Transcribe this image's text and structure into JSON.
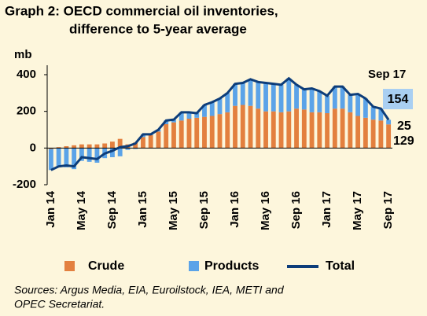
{
  "chart_data": {
    "type": "stacked-bar-line",
    "title": "Graph 2: OECD commercial oil inventories,",
    "subtitle": "difference to 5-year average",
    "y_label": "mb",
    "annotation": "Sep 17",
    "source": [
      "Sources: Argus Media, EIA, Euroilstock, IEA, METI and",
      "OPEC Secretariat."
    ],
    "categories": [
      "Jan 14",
      null,
      null,
      null,
      "May 14",
      null,
      null,
      null,
      "Sep 14",
      null,
      null,
      null,
      "Jan 15",
      null,
      null,
      null,
      "May 15",
      null,
      null,
      null,
      "Sep 15",
      null,
      null,
      null,
      "Jan 16",
      null,
      null,
      null,
      "May 16",
      null,
      null,
      null,
      "Sep 16",
      null,
      null,
      null,
      "Jan 17",
      null,
      null,
      null,
      "May 17",
      null,
      null,
      null,
      "Sep 17"
    ],
    "series": [
      {
        "name": "Crude",
        "color": "#e3803f",
        "values": [
          -5,
          5,
          10,
          15,
          20,
          20,
          20,
          25,
          35,
          50,
          20,
          30,
          60,
          70,
          90,
          130,
          140,
          150,
          160,
          165,
          170,
          175,
          185,
          195,
          230,
          235,
          230,
          215,
          200,
          200,
          195,
          200,
          215,
          210,
          195,
          195,
          190,
          215,
          215,
          195,
          175,
          165,
          155,
          150,
          129
        ]
      },
      {
        "name": "Products",
        "color": "#5ba3e8",
        "values": [
          -115,
          -105,
          -105,
          -115,
          -70,
          -75,
          -80,
          -55,
          -50,
          -45,
          -10,
          -5,
          15,
          5,
          10,
          20,
          15,
          45,
          35,
          25,
          65,
          75,
          85,
          105,
          120,
          120,
          145,
          145,
          155,
          150,
          150,
          180,
          130,
          110,
          130,
          115,
          95,
          120,
          120,
          95,
          120,
          105,
          70,
          65,
          25
        ]
      },
      {
        "name": "Total",
        "color": "#0d3d7a",
        "values": [
          -120,
          -100,
          -95,
          -100,
          -50,
          -55,
          -60,
          -30,
          -15,
          5,
          10,
          25,
          75,
          75,
          100,
          150,
          155,
          195,
          195,
          190,
          235,
          250,
          270,
          300,
          350,
          355,
          375,
          360,
          355,
          350,
          345,
          380,
          345,
          320,
          325,
          310,
          285,
          335,
          335,
          290,
          295,
          270,
          225,
          215,
          154
        ]
      }
    ],
    "ylim": [
      -200,
      400
    ],
    "yticks": [
      -200,
      0,
      200,
      400
    ]
  }
}
